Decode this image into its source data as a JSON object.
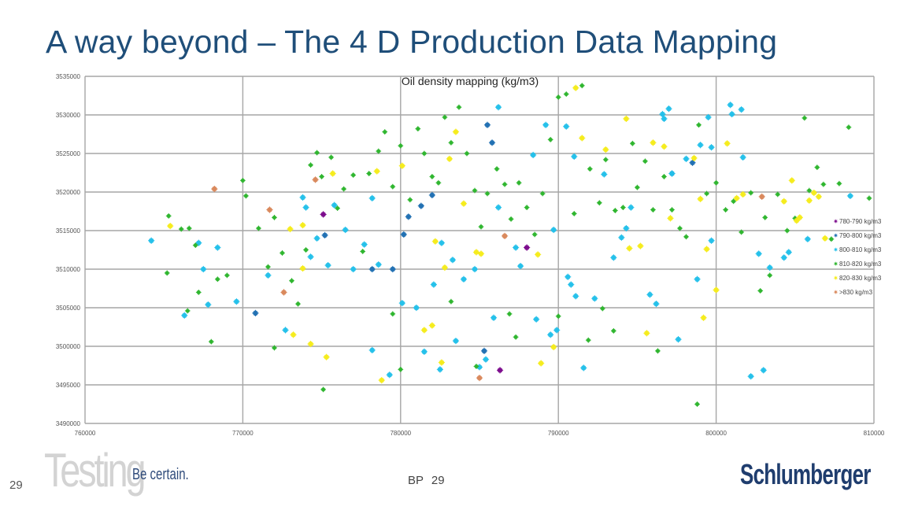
{
  "slide": {
    "title": "A way beyond – The 4 D Production Data Mapping",
    "page_number": "29",
    "brand_word": "Testing",
    "brand_tagline": "Be certain.",
    "footer_text": "BP 29",
    "company_logo": "Schlumberger"
  },
  "colors": {
    "c780_790": "#7b0a8c",
    "c790_800": "#1f6fb2",
    "c800_810": "#22c0ea",
    "c810_820": "#2db52d",
    "c820_830": "#f5ec1a",
    "c830": "#d9875a",
    "grid": "#a6a6a6"
  },
  "chart_data": {
    "type": "scatter",
    "title": "Oil density mapping (kg/m3)",
    "xlim": [
      760000,
      810000
    ],
    "ylim": [
      3490000,
      3535000
    ],
    "x_ticks": [
      "760000",
      "770000",
      "780000",
      "790000",
      "800000",
      "810000"
    ],
    "y_ticks": [
      "3490000",
      "3495000",
      "3500000",
      "3505000",
      "3510000",
      "3515000",
      "3520000",
      "3525000",
      "3530000",
      "3535000"
    ],
    "grid": true,
    "legend_placement": "right",
    "series": [
      {
        "name": "780-790 kg/m3",
        "color_key": "c780_790",
        "points": [
          [
            775100,
            3517100
          ],
          [
            788000,
            3512800
          ],
          [
            786300,
            3496900
          ]
        ]
      },
      {
        "name": "790-800 kg/m3",
        "color_key": "c790_800",
        "points": [
          [
            775200,
            3514400
          ],
          [
            770800,
            3504300
          ],
          [
            778200,
            3510000
          ],
          [
            779500,
            3510000
          ],
          [
            780200,
            3514500
          ],
          [
            781300,
            3518200
          ],
          [
            782000,
            3519600
          ],
          [
            785500,
            3528700
          ],
          [
            785800,
            3526400
          ],
          [
            797200,
            3522400
          ],
          [
            798500,
            3523800
          ],
          [
            785300,
            3499400
          ],
          [
            780500,
            3516800
          ]
        ]
      },
      {
        "name": "800-810 kg/m3",
        "color_key": "c800_810",
        "points": [
          [
            764200,
            3513700
          ],
          [
            767200,
            3513400
          ],
          [
            767500,
            3510000
          ],
          [
            767800,
            3505400
          ],
          [
            766300,
            3504000
          ],
          [
            768400,
            3512800
          ],
          [
            769600,
            3505800
          ],
          [
            771600,
            3509200
          ],
          [
            772700,
            3502100
          ],
          [
            773800,
            3519300
          ],
          [
            774000,
            3518000
          ],
          [
            774300,
            3511600
          ],
          [
            774700,
            3514000
          ],
          [
            775400,
            3510500
          ],
          [
            775800,
            3518300
          ],
          [
            776500,
            3515100
          ],
          [
            777000,
            3510000
          ],
          [
            777700,
            3513200
          ],
          [
            778200,
            3519200
          ],
          [
            778600,
            3510600
          ],
          [
            779300,
            3496300
          ],
          [
            778200,
            3499500
          ],
          [
            780100,
            3505600
          ],
          [
            781000,
            3505000
          ],
          [
            781500,
            3499300
          ],
          [
            782100,
            3508000
          ],
          [
            782500,
            3497000
          ],
          [
            782600,
            3513400
          ],
          [
            783300,
            3511200
          ],
          [
            783500,
            3500700
          ],
          [
            784000,
            3508700
          ],
          [
            784700,
            3510000
          ],
          [
            785000,
            3497300
          ],
          [
            785400,
            3498300
          ],
          [
            785900,
            3503700
          ],
          [
            786200,
            3531000
          ],
          [
            786200,
            3518000
          ],
          [
            787300,
            3512800
          ],
          [
            787600,
            3510400
          ],
          [
            788400,
            3524800
          ],
          [
            788600,
            3503500
          ],
          [
            789200,
            3528700
          ],
          [
            789500,
            3501500
          ],
          [
            789900,
            3502100
          ],
          [
            789700,
            3515100
          ],
          [
            790500,
            3528500
          ],
          [
            790600,
            3509000
          ],
          [
            790800,
            3508000
          ],
          [
            791000,
            3524600
          ],
          [
            791100,
            3506500
          ],
          [
            791600,
            3497200
          ],
          [
            792300,
            3506200
          ],
          [
            792900,
            3522300
          ],
          [
            793500,
            3511500
          ],
          [
            794000,
            3514100
          ],
          [
            794300,
            3515300
          ],
          [
            794600,
            3518000
          ],
          [
            795800,
            3506700
          ],
          [
            796200,
            3505500
          ],
          [
            796600,
            3530100
          ],
          [
            796700,
            3529500
          ],
          [
            797200,
            3522400
          ],
          [
            797000,
            3530800
          ],
          [
            797600,
            3500900
          ],
          [
            798100,
            3524300
          ],
          [
            798800,
            3508700
          ],
          [
            799000,
            3526100
          ],
          [
            799500,
            3529700
          ],
          [
            799700,
            3525800
          ],
          [
            799700,
            3513700
          ],
          [
            800900,
            3531300
          ],
          [
            801000,
            3530100
          ],
          [
            801600,
            3530700
          ],
          [
            801700,
            3524500
          ],
          [
            802200,
            3496100
          ],
          [
            803000,
            3496900
          ],
          [
            802700,
            3512000
          ],
          [
            803400,
            3510200
          ],
          [
            804300,
            3511500
          ],
          [
            804600,
            3512200
          ],
          [
            805800,
            3513900
          ],
          [
            808500,
            3519500
          ]
        ]
      },
      {
        "name": "810-820 kg/m3",
        "color_key": "c810_820",
        "points": [
          [
            765300,
            3516900
          ],
          [
            766100,
            3515200
          ],
          [
            766600,
            3515300
          ],
          [
            765200,
            3509500
          ],
          [
            766500,
            3504600
          ],
          [
            767000,
            3513100
          ],
          [
            767200,
            3507000
          ],
          [
            768000,
            3500600
          ],
          [
            768400,
            3508700
          ],
          [
            769000,
            3509200
          ],
          [
            770000,
            3521500
          ],
          [
            770200,
            3519500
          ],
          [
            771000,
            3515300
          ],
          [
            771600,
            3510300
          ],
          [
            772000,
            3516700
          ],
          [
            772500,
            3512100
          ],
          [
            773100,
            3508500
          ],
          [
            773500,
            3505500
          ],
          [
            774000,
            3512500
          ],
          [
            774300,
            3523500
          ],
          [
            774700,
            3525100
          ],
          [
            775000,
            3522000
          ],
          [
            775600,
            3524500
          ],
          [
            776000,
            3517900
          ],
          [
            776400,
            3520400
          ],
          [
            777000,
            3522200
          ],
          [
            777600,
            3512300
          ],
          [
            778000,
            3522400
          ],
          [
            778600,
            3525300
          ],
          [
            779000,
            3527800
          ],
          [
            779500,
            3520700
          ],
          [
            780000,
            3526000
          ],
          [
            780600,
            3519000
          ],
          [
            781100,
            3528200
          ],
          [
            781500,
            3525000
          ],
          [
            782000,
            3522000
          ],
          [
            782400,
            3521200
          ],
          [
            782800,
            3529700
          ],
          [
            783200,
            3526400
          ],
          [
            783700,
            3531000
          ],
          [
            784200,
            3525000
          ],
          [
            784700,
            3520200
          ],
          [
            785100,
            3515500
          ],
          [
            785500,
            3519800
          ],
          [
            786100,
            3523000
          ],
          [
            786600,
            3521000
          ],
          [
            787000,
            3516500
          ],
          [
            787500,
            3521200
          ],
          [
            788000,
            3518000
          ],
          [
            788500,
            3514500
          ],
          [
            789000,
            3519800
          ],
          [
            789500,
            3526800
          ],
          [
            790000,
            3532300
          ],
          [
            790500,
            3532700
          ],
          [
            791000,
            3517200
          ],
          [
            791500,
            3533800
          ],
          [
            792000,
            3523000
          ],
          [
            792600,
            3518600
          ],
          [
            793000,
            3524200
          ],
          [
            793600,
            3517600
          ],
          [
            794100,
            3518000
          ],
          [
            794700,
            3526300
          ],
          [
            795000,
            3520600
          ],
          [
            795500,
            3524000
          ],
          [
            796000,
            3517700
          ],
          [
            796700,
            3522000
          ],
          [
            797200,
            3517700
          ],
          [
            797700,
            3515300
          ],
          [
            798100,
            3514200
          ],
          [
            798900,
            3528700
          ],
          [
            799400,
            3519800
          ],
          [
            800000,
            3521200
          ],
          [
            800600,
            3517700
          ],
          [
            801100,
            3518800
          ],
          [
            801600,
            3514800
          ],
          [
            802200,
            3519900
          ],
          [
            802800,
            3507200
          ],
          [
            803100,
            3516700
          ],
          [
            803400,
            3509200
          ],
          [
            803900,
            3519700
          ],
          [
            804500,
            3515000
          ],
          [
            805000,
            3516600
          ],
          [
            805600,
            3529600
          ],
          [
            805900,
            3520200
          ],
          [
            806400,
            3523200
          ],
          [
            806800,
            3521000
          ],
          [
            807300,
            3513900
          ],
          [
            807800,
            3521100
          ],
          [
            808400,
            3528400
          ],
          [
            809700,
            3519200
          ],
          [
            775100,
            3494400
          ],
          [
            780000,
            3497000
          ],
          [
            784800,
            3497400
          ],
          [
            787300,
            3501200
          ],
          [
            791900,
            3500800
          ],
          [
            793500,
            3502000
          ],
          [
            796300,
            3499400
          ],
          [
            798800,
            3492500
          ],
          [
            772000,
            3499800
          ],
          [
            779500,
            3504200
          ],
          [
            783200,
            3505800
          ],
          [
            786900,
            3504200
          ],
          [
            790000,
            3503900
          ],
          [
            792800,
            3504900
          ]
        ]
      },
      {
        "name": "820-830 kg/m3",
        "color_key": "c820_830",
        "points": [
          [
            765400,
            3515600
          ],
          [
            773000,
            3515200
          ],
          [
            773800,
            3515700
          ],
          [
            773800,
            3510100
          ],
          [
            774300,
            3500300
          ],
          [
            775300,
            3498600
          ],
          [
            773200,
            3501500
          ],
          [
            775700,
            3522400
          ],
          [
            778500,
            3522700
          ],
          [
            780100,
            3523400
          ],
          [
            782200,
            3513600
          ],
          [
            781500,
            3502100
          ],
          [
            782000,
            3502700
          ],
          [
            782800,
            3510200
          ],
          [
            783100,
            3524300
          ],
          [
            783500,
            3527800
          ],
          [
            784000,
            3518500
          ],
          [
            784800,
            3512200
          ],
          [
            785100,
            3512000
          ],
          [
            788700,
            3511900
          ],
          [
            788900,
            3497800
          ],
          [
            789700,
            3499900
          ],
          [
            791100,
            3533500
          ],
          [
            791500,
            3527000
          ],
          [
            793000,
            3525500
          ],
          [
            794300,
            3529500
          ],
          [
            794500,
            3512700
          ],
          [
            795200,
            3513000
          ],
          [
            795600,
            3501700
          ],
          [
            796000,
            3526400
          ],
          [
            796700,
            3525900
          ],
          [
            797100,
            3516600
          ],
          [
            798600,
            3524400
          ],
          [
            799000,
            3519100
          ],
          [
            799200,
            3503700
          ],
          [
            799400,
            3512600
          ],
          [
            800000,
            3507300
          ],
          [
            800700,
            3526300
          ],
          [
            801300,
            3519200
          ],
          [
            801700,
            3519700
          ],
          [
            804300,
            3518800
          ],
          [
            804800,
            3521500
          ],
          [
            805100,
            3516300
          ],
          [
            805300,
            3516700
          ],
          [
            805900,
            3518900
          ],
          [
            806200,
            3519900
          ],
          [
            806500,
            3519400
          ],
          [
            806900,
            3514000
          ],
          [
            782600,
            3497900
          ],
          [
            778800,
            3495600
          ]
        ]
      },
      {
        "name": ">830 kg/m3",
        "color_key": "c830",
        "points": [
          [
            768200,
            3520400
          ],
          [
            771700,
            3517700
          ],
          [
            772600,
            3507000
          ],
          [
            774600,
            3521600
          ],
          [
            786600,
            3514300
          ],
          [
            785000,
            3495900
          ],
          [
            802900,
            3519400
          ]
        ]
      }
    ]
  }
}
